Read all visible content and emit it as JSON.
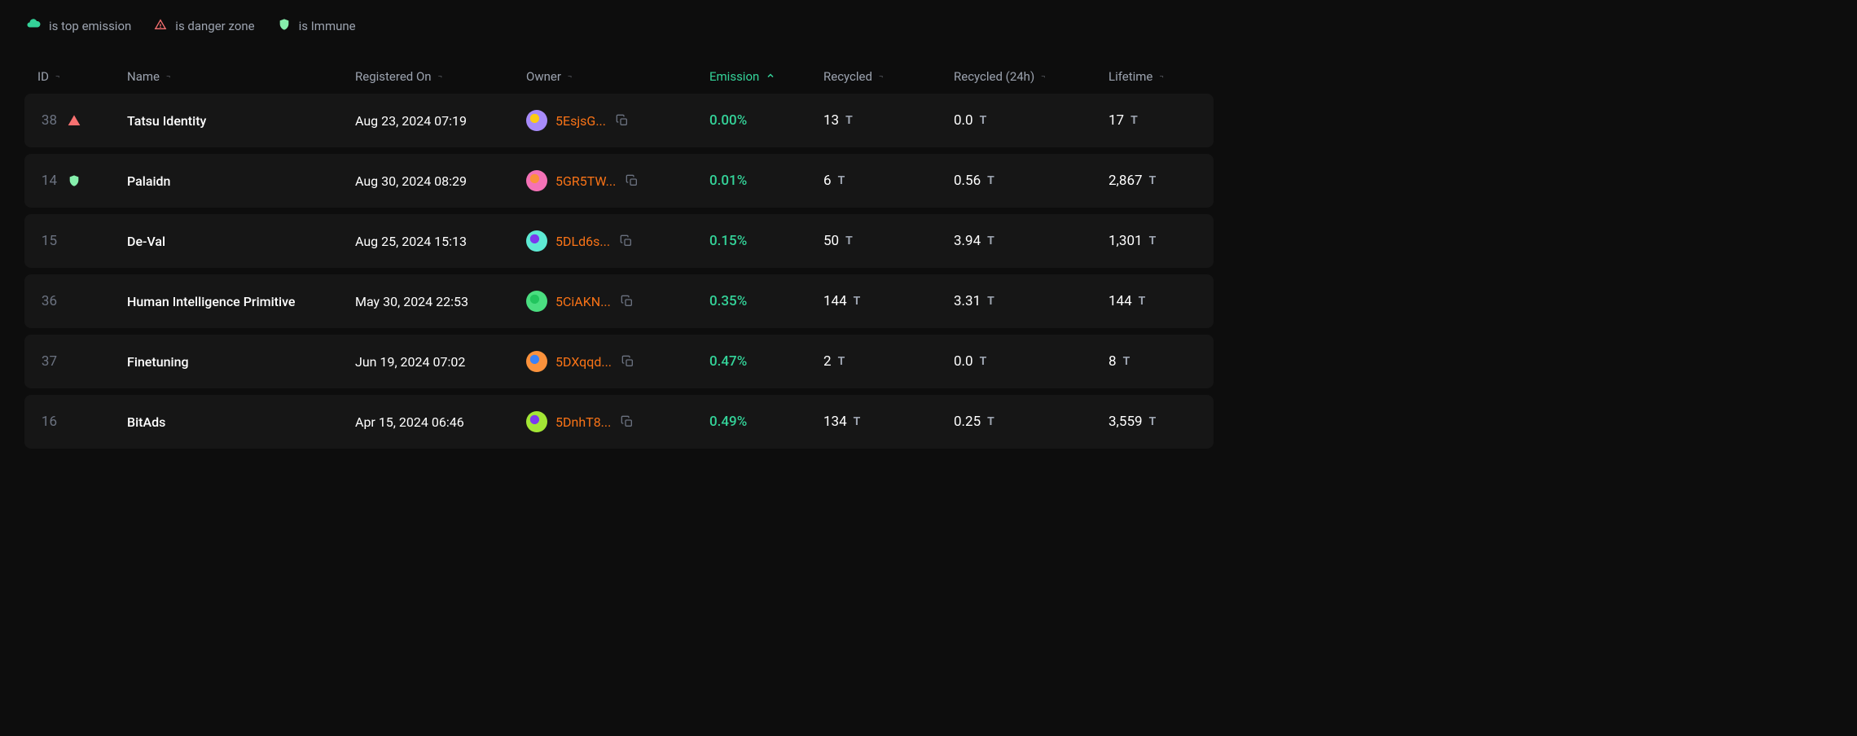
{
  "legend": {
    "topEmission": "is top emission",
    "dangerZone": "is danger zone",
    "immune": "is Immune"
  },
  "columns": {
    "id": "ID",
    "name": "Name",
    "registeredOn": "Registered On",
    "owner": "Owner",
    "emission": "Emission",
    "recycled": "Recycled",
    "recycled24h": "Recycled (24h)",
    "lifetime": "Lifetime"
  },
  "rows": [
    {
      "id": "38",
      "status": "danger",
      "name": "Tatsu Identity",
      "registeredOn": "Aug 23, 2024 07:19",
      "owner": "5EsjsG...",
      "avatarColors": [
        "#a78bfa",
        "#facc15"
      ],
      "emission": "0.00%",
      "recycled": "13",
      "recycled24h": "0.0",
      "lifetime": "17"
    },
    {
      "id": "14",
      "status": "immune",
      "name": "Palaidn",
      "registeredOn": "Aug 30, 2024 08:29",
      "owner": "5GR5TW...",
      "avatarColors": [
        "#f472b6",
        "#fb923c"
      ],
      "emission": "0.01%",
      "recycled": "6",
      "recycled24h": "0.56",
      "lifetime": "2,867"
    },
    {
      "id": "15",
      "status": "none",
      "name": "De-Val",
      "registeredOn": "Aug 25, 2024 15:13",
      "owner": "5DLd6s...",
      "avatarColors": [
        "#5eead4",
        "#7c3aed"
      ],
      "emission": "0.15%",
      "recycled": "50",
      "recycled24h": "3.94",
      "lifetime": "1,301"
    },
    {
      "id": "36",
      "status": "none",
      "name": "Human Intelligence Primitive",
      "registeredOn": "May 30, 2024 22:53",
      "owner": "5CiAKN...",
      "avatarColors": [
        "#4ade80",
        "#22c55e"
      ],
      "emission": "0.35%",
      "recycled": "144",
      "recycled24h": "3.31",
      "lifetime": "144"
    },
    {
      "id": "37",
      "status": "none",
      "name": "Finetuning",
      "registeredOn": "Jun 19, 2024 07:02",
      "owner": "5DXqqd...",
      "avatarColors": [
        "#fb923c",
        "#3b82f6"
      ],
      "emission": "0.47%",
      "recycled": "2",
      "recycled24h": "0.0",
      "lifetime": "8"
    },
    {
      "id": "16",
      "status": "none",
      "name": "BitAds",
      "registeredOn": "Apr 15, 2024 06:46",
      "owner": "5DnhT8...",
      "avatarColors": [
        "#a3e635",
        "#7c3aed"
      ],
      "emission": "0.49%",
      "recycled": "134",
      "recycled24h": "0.25",
      "lifetime": "3,559"
    }
  ],
  "tauSymbol": "T"
}
